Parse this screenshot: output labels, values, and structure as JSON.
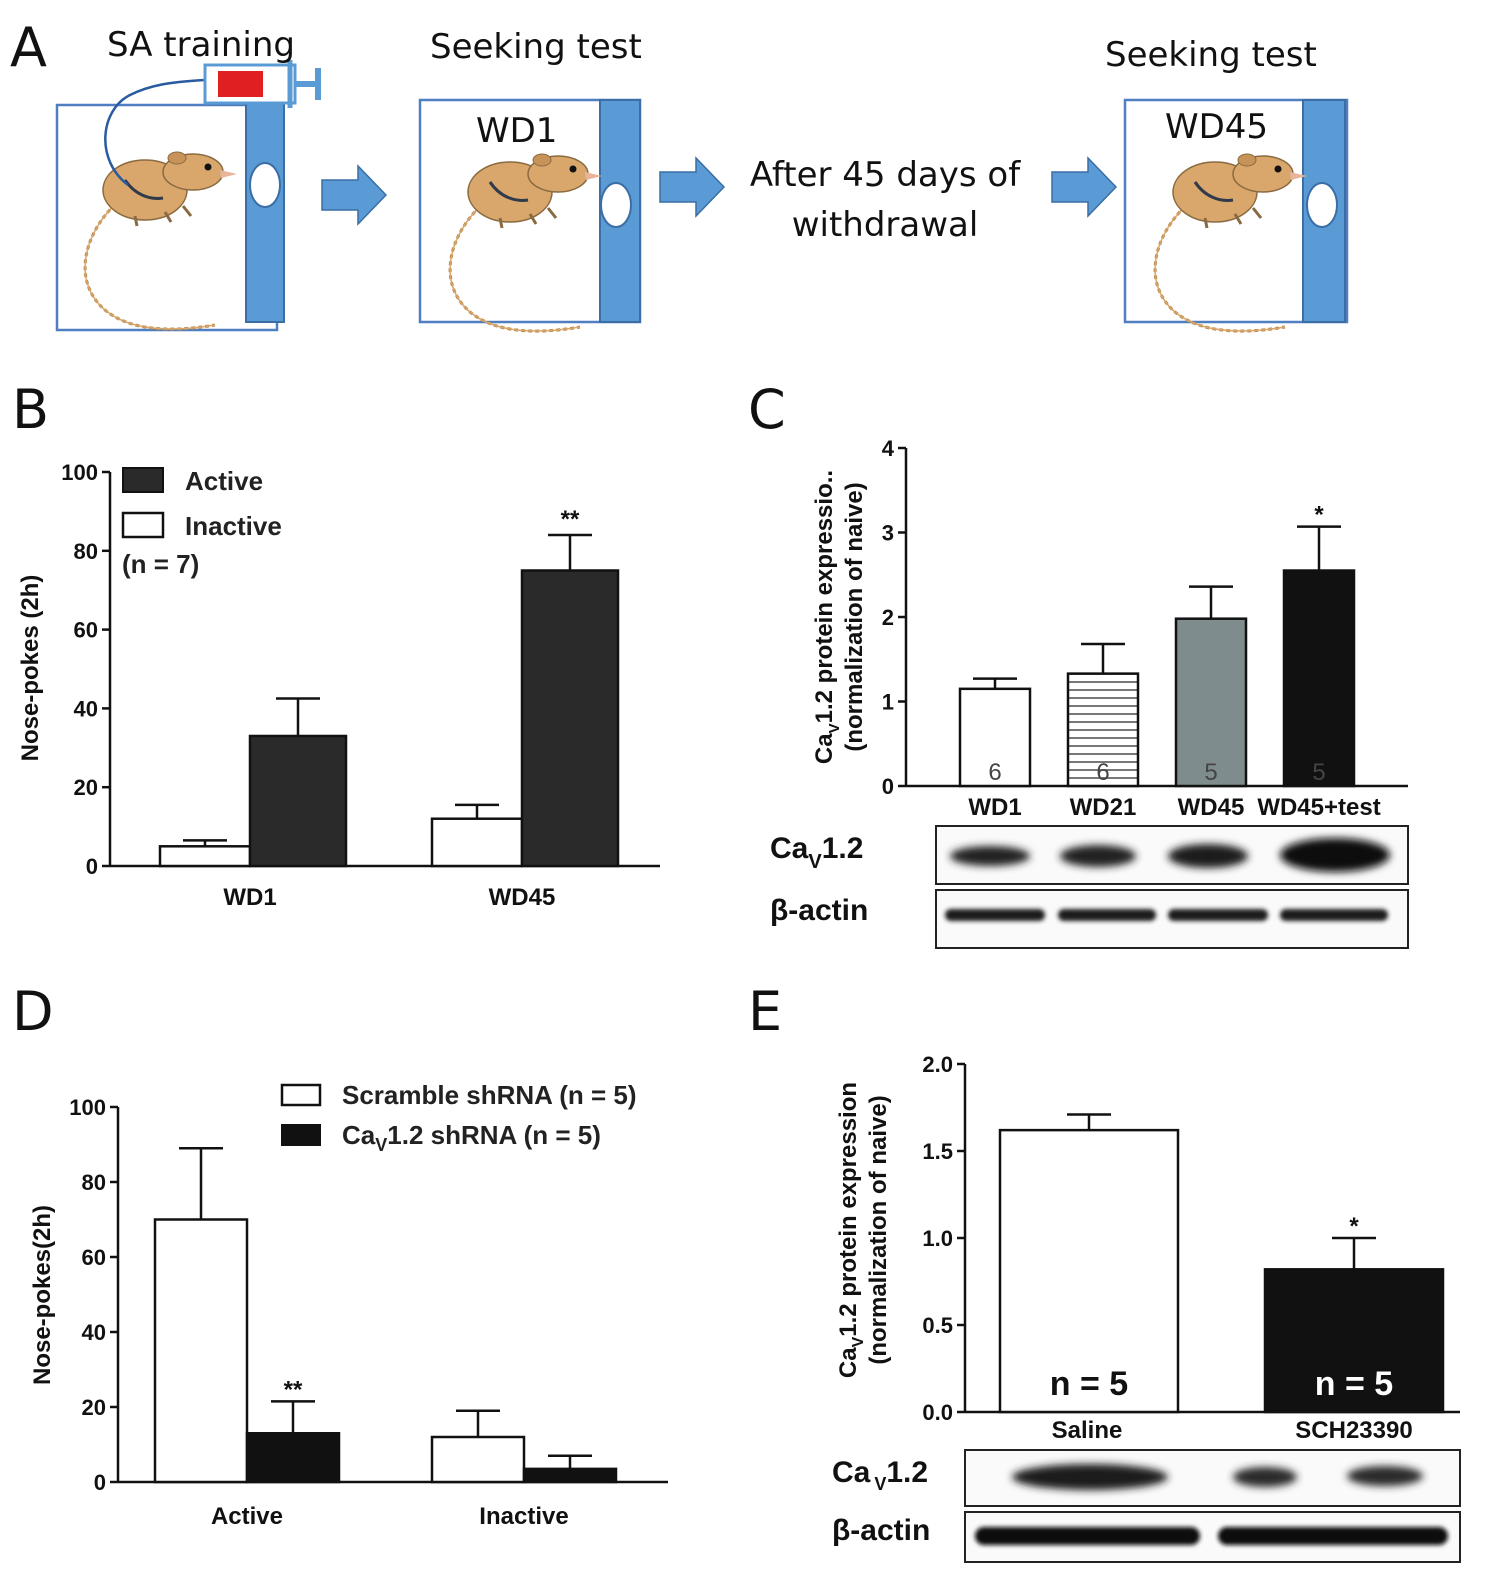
{
  "panels": {
    "A": {
      "letter": "A",
      "sa_training": "SA training",
      "seeking_test_1": "Seeking test",
      "wd1": "WD1",
      "after_line1": "After 45 days of",
      "after_line2": "withdrawal",
      "seeking_test_2": "Seeking test",
      "wd45": "WD45",
      "colors": {
        "box_border": "#4f7fc0",
        "door": "#5b9bd5",
        "arrow": "#5b9bd5",
        "syringe_fill": "#e02020",
        "mouse": "#d9a66b"
      }
    },
    "B": {
      "letter": "B"
    },
    "C": {
      "letter": "C",
      "blot_labels": [
        "Ca",
        "1.2",
        "β-actin"
      ],
      "blot_sub": "V"
    },
    "D": {
      "letter": "D"
    },
    "E": {
      "letter": "E",
      "blot_labels": [
        "Ca",
        "1.2",
        "β-actin"
      ],
      "blot_sub": "V"
    }
  },
  "chart_data": [
    {
      "panel": "B",
      "type": "bar",
      "categories": [
        "WD1",
        "WD45"
      ],
      "series": [
        {
          "name": "Inactive",
          "values": [
            5,
            12
          ],
          "errors": [
            1.5,
            3.5
          ],
          "color": "#ffffff"
        },
        {
          "name": "Active",
          "values": [
            33,
            75
          ],
          "errors": [
            9.5,
            9
          ],
          "color": "#2a2a2a"
        }
      ],
      "legend_note": "(n = 7)",
      "legend_order": [
        "Active",
        "Inactive"
      ],
      "ylabel": "Nose-pokes (2h)",
      "ylim": [
        0,
        100
      ],
      "yticks": [
        "0",
        "20",
        "40",
        "60",
        "80",
        "100"
      ],
      "annotations": [
        {
          "category": "WD45",
          "series": "Active",
          "text": "**"
        }
      ],
      "legend_position": "top-left"
    },
    {
      "panel": "C",
      "type": "bar",
      "categories": [
        "WD1",
        "WD21",
        "WD45",
        "WD45+test"
      ],
      "values": [
        1.15,
        1.33,
        1.98,
        2.55
      ],
      "errors": [
        0.12,
        0.35,
        0.38,
        0.52
      ],
      "n_labels": [
        "6",
        "6",
        "5",
        "5"
      ],
      "fills": [
        "white",
        "hatched",
        "#7f8c8d",
        "#111111"
      ],
      "ylabel_line1": "Ca",
      "ylabel_sub": "V",
      "ylabel_line1_rest": "1.2 protein expressio..",
      "ylabel_line2": "(normalization of naive)",
      "ylim": [
        0,
        4
      ],
      "yticks": [
        "0",
        "1",
        "2",
        "3",
        "4"
      ],
      "annotations": [
        {
          "category": "WD45+test",
          "text": "*"
        }
      ]
    },
    {
      "panel": "D",
      "type": "bar",
      "categories": [
        "Active",
        "Inactive"
      ],
      "series": [
        {
          "name": "Scramble shRNA (n = 5)",
          "values": [
            70,
            12
          ],
          "errors": [
            19,
            7
          ],
          "color": "#ffffff"
        },
        {
          "name_prefix": "Ca",
          "name_sub": "V",
          "name_rest": "1.2 shRNA (n = 5)",
          "values": [
            13,
            3.5
          ],
          "errors": [
            8.5,
            3.5
          ],
          "color": "#111111"
        }
      ],
      "ylabel": "Nose-pokes(2h)",
      "ylim": [
        0,
        100
      ],
      "yticks": [
        "0",
        "20",
        "40",
        "60",
        "80",
        "100"
      ],
      "annotations": [
        {
          "category": "Active",
          "series": 1,
          "text": "**"
        }
      ],
      "legend_position": "top-right"
    },
    {
      "panel": "E",
      "type": "bar",
      "categories": [
        "Saline",
        "SCH23390"
      ],
      "values": [
        1.62,
        0.82
      ],
      "errors": [
        0.09,
        0.18
      ],
      "n_labels": [
        "n = 5",
        "n = 5"
      ],
      "fills": [
        "#ffffff",
        "#111111"
      ],
      "ylabel_line1": "Ca",
      "ylabel_sub": "V",
      "ylabel_line1_rest": "1.2 protein expression",
      "ylabel_line2": "(normalization of naive)",
      "ylim": [
        0,
        2.0
      ],
      "yticks": [
        "0.0",
        "0.5",
        "1.0",
        "1.5",
        "2.0"
      ],
      "annotations": [
        {
          "category": "SCH23390",
          "text": "*"
        }
      ]
    }
  ]
}
